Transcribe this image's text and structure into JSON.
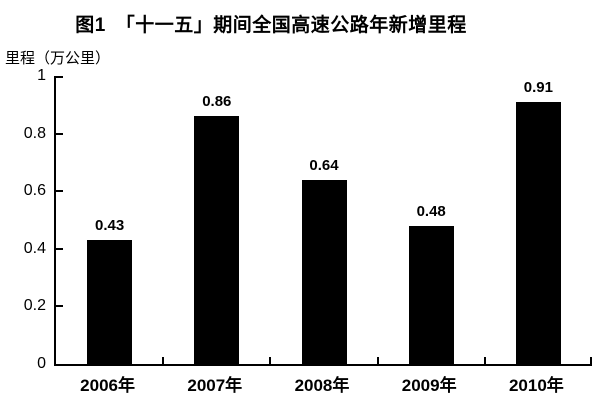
{
  "chart_data": {
    "type": "bar",
    "title": "图1　「十一五」期间全国高速公路年新增里程",
    "ylabel": "里程（万公里）",
    "xlabel": "",
    "categories": [
      "2006年",
      "2007年",
      "2008年",
      "2009年",
      "2010年"
    ],
    "values": [
      0.43,
      0.86,
      0.64,
      0.48,
      0.91
    ],
    "data_labels": [
      "0.43",
      "0.86",
      "0.64",
      "0.48",
      "0.91"
    ],
    "ylim": [
      0,
      1
    ],
    "yticks": [
      0,
      0.2,
      0.4,
      0.6,
      0.8,
      1
    ],
    "ytick_labels": [
      "0",
      "0.2",
      "0.4",
      "0.6",
      "0.8",
      "1"
    ],
    "grid": false,
    "legend": false,
    "bar_color": "#000000",
    "axis_color": "#000000",
    "background_color": "#ffffff",
    "tick_style": "inward"
  }
}
